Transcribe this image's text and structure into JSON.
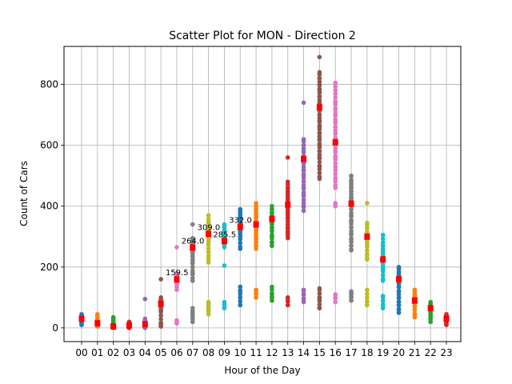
{
  "chart_data": {
    "type": "scatter",
    "title": "Scatter Plot for MON - Direction 2",
    "xlabel": "Hour of the Day",
    "ylabel": "Count of Cars",
    "categories": [
      "00",
      "01",
      "02",
      "03",
      "04",
      "05",
      "06",
      "07",
      "08",
      "09",
      "10",
      "11",
      "12",
      "13",
      "14",
      "15",
      "16",
      "17",
      "18",
      "19",
      "20",
      "21",
      "22",
      "23"
    ],
    "y_ticks": [
      0,
      200,
      400,
      600,
      800
    ],
    "ylim": [
      -45,
      925
    ],
    "grid": true,
    "series": [
      {
        "category": "00",
        "color": "#1f77b4",
        "values": [
          10,
          15,
          20,
          25,
          30,
          35,
          40,
          45
        ],
        "median": 30
      },
      {
        "category": "01",
        "color": "#ff7f0e",
        "values": [
          5,
          10,
          15,
          20,
          25,
          30,
          35,
          40,
          45
        ],
        "median": 15
      },
      {
        "category": "02",
        "color": "#2ca02c",
        "values": [
          0,
          5,
          10,
          15,
          20,
          25,
          30,
          35
        ],
        "median": 5
      },
      {
        "category": "03",
        "color": "#d62728",
        "values": [
          0,
          5,
          10,
          15,
          20
        ],
        "median": 8
      },
      {
        "category": "04",
        "color": "#9467bd",
        "values": [
          0,
          5,
          10,
          15,
          20,
          25,
          30,
          95
        ],
        "median": 12
      },
      {
        "category": "05",
        "color": "#8c564b",
        "values": [
          5,
          10,
          15,
          55,
          60,
          65,
          70,
          75,
          80,
          85,
          90,
          95,
          100,
          160
        ],
        "median": 79.5
      },
      {
        "category": "06",
        "color": "#e377c2",
        "values": [
          15,
          20,
          25,
          125,
          135,
          145,
          150,
          155,
          160,
          165,
          170,
          175,
          180,
          265
        ],
        "median": 159.5
      },
      {
        "category": "07",
        "color": "#7f7f7f",
        "values": [
          20,
          30,
          40,
          50,
          65,
          155,
          180,
          215,
          225,
          235,
          245,
          255,
          265,
          275,
          285,
          295,
          340
        ],
        "median": 264
      },
      {
        "category": "08",
        "color": "#bcbd22",
        "values": [
          45,
          55,
          65,
          75,
          85,
          215,
          235,
          260,
          275,
          285,
          295,
          305,
          315,
          325,
          335,
          345,
          355,
          370
        ],
        "median": 309
      },
      {
        "category": "09",
        "color": "#17becf",
        "values": [
          65,
          75,
          85,
          205,
          265,
          275,
          285,
          295,
          305,
          315,
          325,
          335,
          340
        ],
        "median": 285.5
      },
      {
        "category": "10",
        "color": "#1f77b4",
        "values": [
          75,
          100,
          120,
          135,
          260,
          300,
          310,
          320,
          330,
          340,
          350,
          360,
          370,
          380,
          390
        ],
        "median": 332
      },
      {
        "category": "11",
        "color": "#ff7f0e",
        "values": [
          100,
          110,
          120,
          125,
          260,
          270,
          280,
          290,
          300,
          310,
          320,
          330,
          340,
          350,
          360,
          370,
          380,
          390,
          400,
          410
        ],
        "median": 340
      },
      {
        "category": "12",
        "color": "#2ca02c",
        "values": [
          90,
          100,
          110,
          135,
          270,
          280,
          300,
          320,
          330,
          340,
          350,
          360,
          370,
          380,
          390,
          400
        ],
        "median": 358
      },
      {
        "category": "13",
        "color": "#d62728",
        "values": [
          75,
          90,
          100,
          295,
          310,
          320,
          330,
          340,
          350,
          360,
          370,
          380,
          390,
          400,
          410,
          420,
          430,
          440,
          450,
          460,
          480,
          560
        ],
        "median": 405
      },
      {
        "category": "14",
        "color": "#9467bd",
        "values": [
          85,
          95,
          110,
          125,
          385,
          400,
          420,
          440,
          460,
          480,
          500,
          520,
          540,
          560,
          580,
          600,
          620,
          740
        ],
        "median": 555
      },
      {
        "category": "15",
        "color": "#8c564b",
        "values": [
          65,
          95,
          130,
          490,
          530,
          560,
          580,
          600,
          620,
          640,
          660,
          680,
          700,
          720,
          740,
          760,
          780,
          800,
          820,
          840,
          890
        ],
        "median": 725
      },
      {
        "category": "16",
        "color": "#e377c2",
        "values": [
          85,
          100,
          110,
          400,
          410,
          460,
          490,
          520,
          540,
          560,
          580,
          600,
          620,
          640,
          660,
          680,
          700,
          720,
          740,
          770,
          805
        ],
        "median": 610
      },
      {
        "category": "17",
        "color": "#7f7f7f",
        "values": [
          90,
          100,
          110,
          120,
          255,
          270,
          290,
          310,
          330,
          350,
          370,
          390,
          410,
          420,
          430,
          440,
          450,
          460,
          470,
          480,
          500
        ],
        "median": 408
      },
      {
        "category": "18",
        "color": "#bcbd22",
        "values": [
          75,
          85,
          100,
          125,
          225,
          240,
          255,
          270,
          285,
          300,
          315,
          330,
          345,
          410
        ],
        "median": 300
      },
      {
        "category": "19",
        "color": "#17becf",
        "values": [
          65,
          75,
          90,
          105,
          155,
          190,
          200,
          210,
          220,
          230,
          240,
          250,
          260,
          270,
          280,
          305
        ],
        "median": 225
      },
      {
        "category": "20",
        "color": "#1f77b4",
        "values": [
          50,
          60,
          75,
          85,
          100,
          120,
          135,
          145,
          155,
          165,
          175,
          185,
          195,
          200
        ],
        "median": 160
      },
      {
        "category": "21",
        "color": "#ff7f0e",
        "values": [
          35,
          45,
          60,
          70,
          80,
          90,
          100,
          110,
          125
        ],
        "median": 90
      },
      {
        "category": "22",
        "color": "#2ca02c",
        "values": [
          20,
          30,
          40,
          50,
          60,
          70,
          80,
          85
        ],
        "median": 65
      },
      {
        "category": "23",
        "color": "#d62728",
        "values": [
          10,
          15,
          20,
          25,
          30,
          35,
          40,
          45
        ],
        "median": 30
      }
    ],
    "annotations": [
      {
        "category": "06",
        "value": 159.5,
        "text": "159.5"
      },
      {
        "category": "07",
        "value": 264.0,
        "text": "264.0"
      },
      {
        "category": "08",
        "value": 309.0,
        "text": "309.0"
      },
      {
        "category": "09",
        "value": 285.5,
        "text": "285.5"
      },
      {
        "category": "10",
        "value": 332.0,
        "text": "332.0"
      }
    ],
    "median_marker_color": "#ff0000"
  }
}
